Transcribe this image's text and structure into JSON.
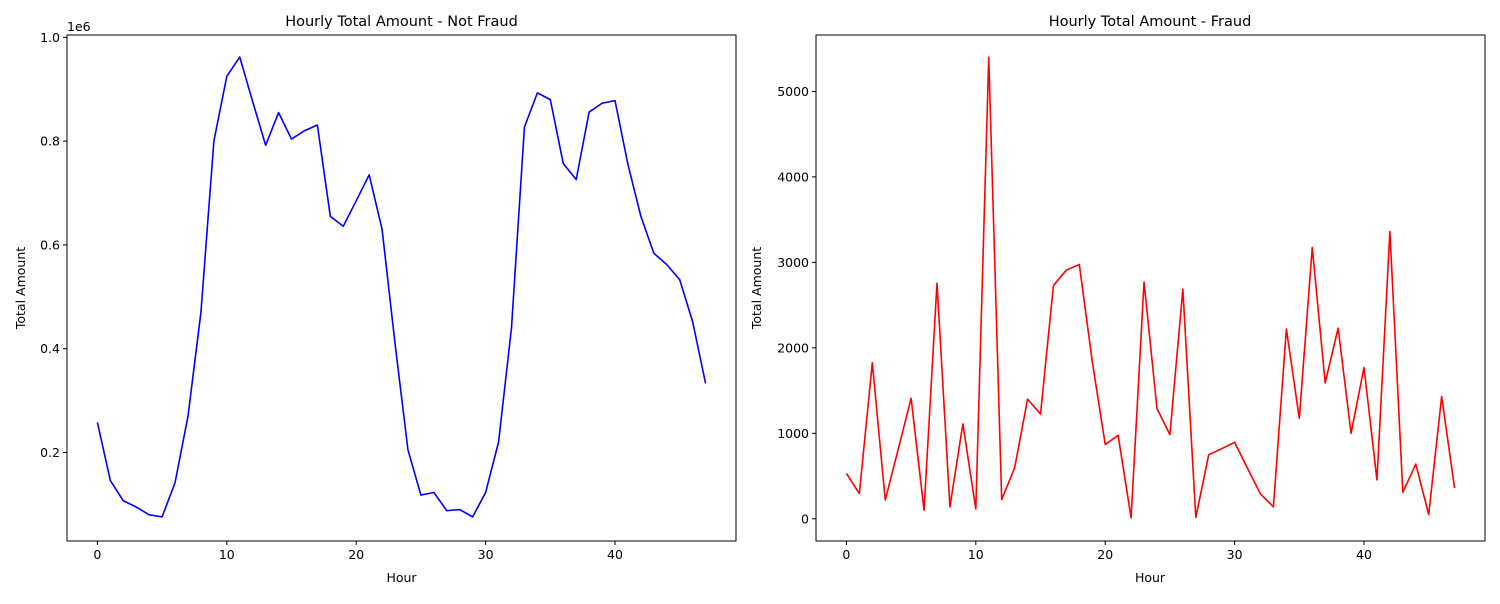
{
  "chart_data": [
    {
      "type": "line",
      "title": "Hourly Total Amount - Not Fraud",
      "xlabel": "Hour",
      "ylabel": "Total Amount",
      "y_offset_text": "1e6",
      "xlim": [
        -2.35,
        49.35
      ],
      "ylim": [
        0.0295,
        1.0045
      ],
      "x_ticks": [
        0,
        10,
        20,
        30,
        40
      ],
      "y_ticks": [
        0.2,
        0.4,
        0.6,
        0.8,
        1.0
      ],
      "y_tick_labels": [
        "0.2",
        "0.4",
        "0.6",
        "0.8",
        "1.0"
      ],
      "grid": false,
      "color": "#0000ff",
      "series": [
        {
          "x": [
            0,
            1,
            2,
            3,
            4,
            5,
            6,
            7,
            8,
            9,
            10,
            11,
            12,
            13,
            14,
            15,
            16,
            17,
            18,
            19,
            20,
            21,
            22,
            23,
            24,
            25,
            26,
            27,
            28,
            29,
            30,
            31,
            32,
            33,
            34,
            35,
            36,
            37,
            38,
            39,
            40,
            41,
            42,
            43,
            44,
            45,
            46,
            47
          ],
          "values": [
            0.258,
            0.146,
            0.107,
            0.095,
            0.08,
            0.076,
            0.142,
            0.27,
            0.47,
            0.8,
            0.925,
            0.962,
            0.876,
            0.792,
            0.855,
            0.804,
            0.82,
            0.831,
            0.655,
            0.636,
            0.685,
            0.735,
            0.63,
            0.41,
            0.205,
            0.118,
            0.123,
            0.088,
            0.09,
            0.076,
            0.123,
            0.22,
            0.44,
            0.827,
            0.893,
            0.88,
            0.757,
            0.726,
            0.856,
            0.873,
            0.878,
            0.755,
            0.655,
            0.584,
            0.562,
            0.533,
            0.452,
            0.333
          ]
        }
      ]
    },
    {
      "type": "line",
      "title": "Hourly Total Amount - Fraud",
      "xlabel": "Hour",
      "ylabel": "Total Amount",
      "xlim": [
        -2.35,
        49.35
      ],
      "ylim": [
        -260,
        5660
      ],
      "x_ticks": [
        0,
        10,
        20,
        30,
        40
      ],
      "y_ticks": [
        0,
        1000,
        2000,
        3000,
        4000,
        5000
      ],
      "y_tick_labels": [
        "0",
        "1000",
        "2000",
        "3000",
        "4000",
        "5000"
      ],
      "grid": false,
      "color": "#ff0000",
      "series": [
        {
          "x": [
            0,
            1,
            2,
            3,
            4,
            5,
            6,
            7,
            8,
            9,
            10,
            11,
            12,
            13,
            14,
            15,
            16,
            17,
            18,
            19,
            20,
            21,
            22,
            23,
            24,
            25,
            26,
            27,
            28,
            29,
            30,
            31,
            32,
            33,
            34,
            35,
            36,
            37,
            38,
            39,
            40,
            41,
            42,
            43,
            44,
            45,
            46,
            47
          ],
          "values": [
            530,
            295,
            1825,
            220,
            810,
            1410,
            100,
            2755,
            140,
            1110,
            115,
            5400,
            225,
            595,
            1400,
            1225,
            2730,
            2910,
            2975,
            1840,
            870,
            975,
            10,
            2770,
            1290,
            985,
            2685,
            15,
            750,
            820,
            895,
            590,
            290,
            140,
            2220,
            1175,
            3175,
            1590,
            2230,
            1000,
            1770,
            455,
            3360,
            310,
            640,
            50,
            1430,
            360
          ]
        }
      ]
    }
  ]
}
